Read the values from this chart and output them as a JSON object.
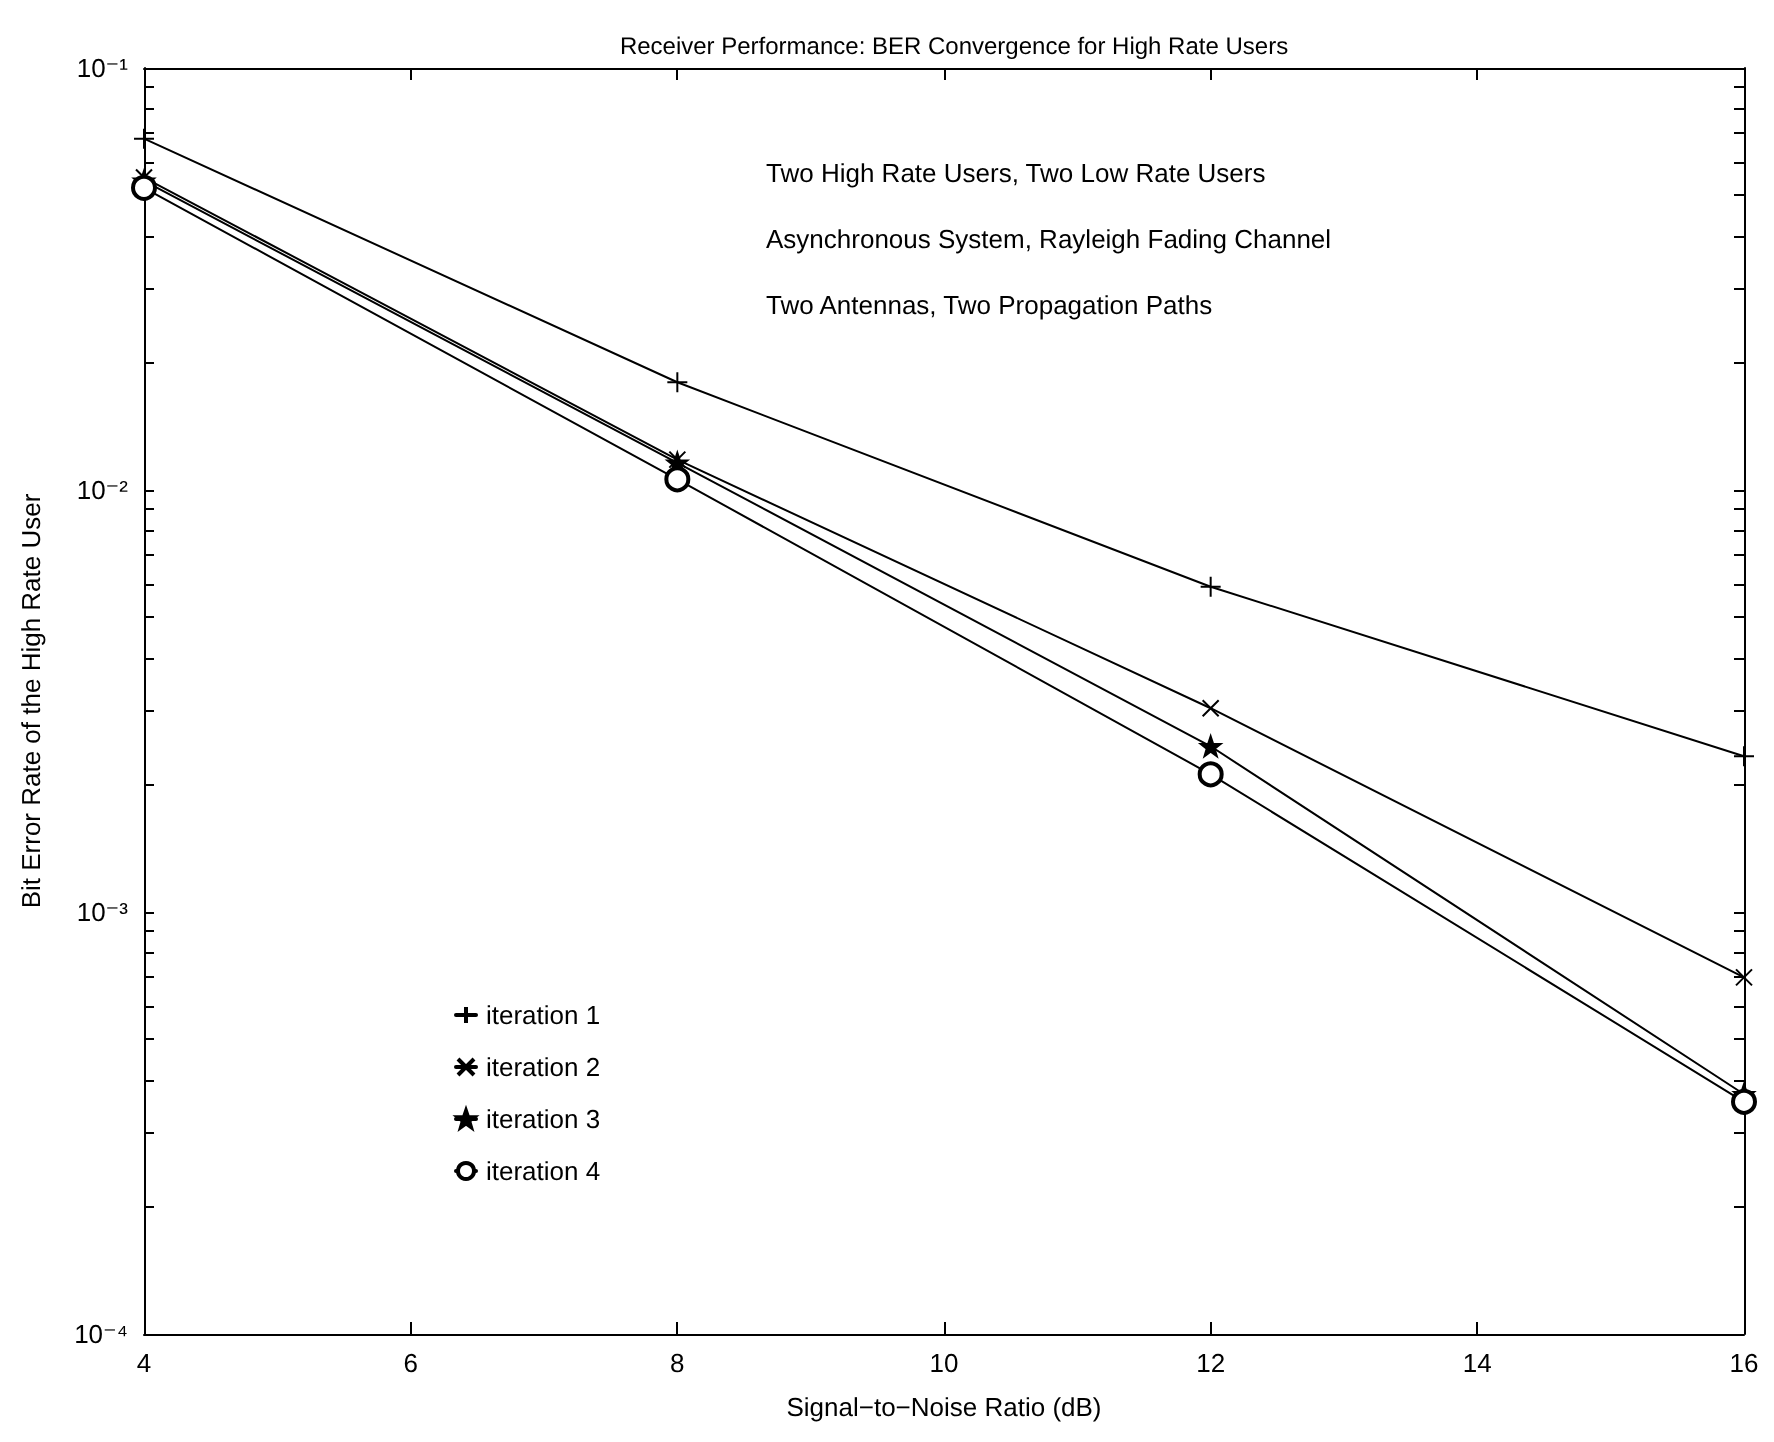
{
  "chart_data": {
    "type": "line",
    "title": "Receiver Performance: BER Convergence for High Rate Users",
    "xlabel": "Signal−to−Noise Ratio (dB)",
    "ylabel": "Bit Error Rate of the High Rate User",
    "x": [
      4,
      8,
      12,
      16
    ],
    "series": [
      {
        "name": "iteration 1",
        "color": "#000000",
        "marker": "cross",
        "values": [
          0.068,
          0.018,
          0.0059,
          0.00234
        ]
      },
      {
        "name": "iteration 2",
        "color": "#000000",
        "marker": "x",
        "values": [
          0.055,
          0.0118,
          0.00304,
          0.0007
        ]
      },
      {
        "name": "iteration 3",
        "color": "#000000",
        "marker": "star",
        "values": [
          0.054,
          0.0116,
          0.00247,
          0.00037
        ]
      },
      {
        "name": "iteration 4",
        "color": "#000000",
        "marker": "circle",
        "values": [
          0.052,
          0.0106,
          0.00212,
          0.000355
        ]
      }
    ],
    "xlim": [
      4,
      16
    ],
    "xticks": [
      4,
      6,
      8,
      10,
      12,
      14,
      16
    ],
    "ylim": [
      0.0001,
      0.1
    ],
    "log": "y",
    "yticks": [
      {
        "value": 0.0001,
        "label": "10⁻⁴"
      },
      {
        "value": 0.0002,
        "label": null
      },
      {
        "value": 0.0003,
        "label": null
      },
      {
        "value": 0.0004,
        "label": null
      },
      {
        "value": 0.0005,
        "label": null
      },
      {
        "value": 0.0006,
        "label": null
      },
      {
        "value": 0.0007,
        "label": null
      },
      {
        "value": 0.0008,
        "label": null
      },
      {
        "value": 0.0009,
        "label": null
      },
      {
        "value": 0.001,
        "label": "10⁻³"
      },
      {
        "value": 0.002,
        "label": null
      },
      {
        "value": 0.003,
        "label": null
      },
      {
        "value": 0.004,
        "label": null
      },
      {
        "value": 0.005,
        "label": null
      },
      {
        "value": 0.006,
        "label": null
      },
      {
        "value": 0.007,
        "label": null
      },
      {
        "value": 0.008,
        "label": null
      },
      {
        "value": 0.009,
        "label": null
      },
      {
        "value": 0.01,
        "label": "10⁻²"
      },
      {
        "value": 0.02,
        "label": null
      },
      {
        "value": 0.03,
        "label": null
      },
      {
        "value": 0.04,
        "label": null
      },
      {
        "value": 0.05,
        "label": null
      },
      {
        "value": 0.06,
        "label": null
      },
      {
        "value": 0.07,
        "label": null
      },
      {
        "value": 0.08,
        "label": null
      },
      {
        "value": 0.09,
        "label": null
      },
      {
        "value": 0.1,
        "label": "10⁻¹"
      }
    ],
    "annotations": [
      "Two High Rate Users, Two Low Rate Users",
      "Asynchronous System, Rayleigh Fading Channel",
      "Two Antennas, Two Propagation Paths"
    ],
    "grid": false,
    "legend": "bottom left",
    "line_style": "solid"
  }
}
